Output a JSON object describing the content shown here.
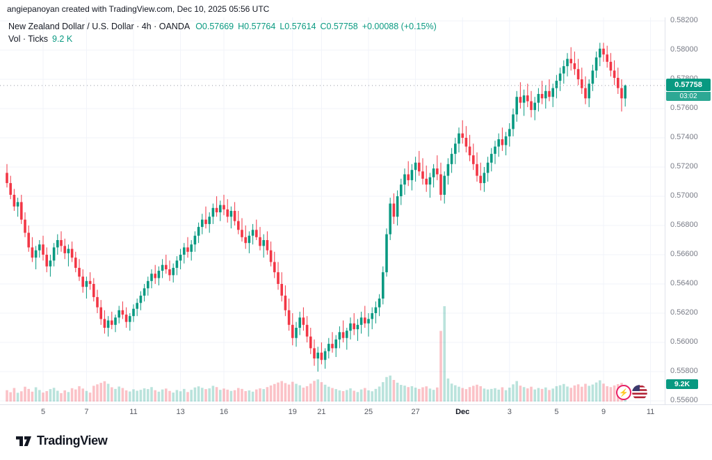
{
  "attribution": "angiepanoyan created with TradingView.com, Dec 10, 2025 05:56 UTC",
  "legend": {
    "symbol_line": "New Zealand Dollar / U.S. Dollar · 4h · OANDA",
    "open": "O0.57669",
    "high": "H0.57764",
    "low": "L0.57614",
    "close": "C0.57758",
    "change": "+0.00088 (+0.15%)",
    "vol_label": "Vol · Ticks",
    "vol_value": "9.2 K"
  },
  "badges": {
    "last_price": "0.57758",
    "countdown": "03:02",
    "volume": "9.2K"
  },
  "icons": {
    "lightning": "⚡"
  },
  "footer": {
    "logo_text": "TradingView"
  },
  "colors": {
    "up": "#089981",
    "down": "#f23645",
    "vol_up": "rgba(8,153,129,0.28)",
    "vol_down": "rgba(242,54,69,0.30)",
    "grid": "#f0f3fa",
    "last_price_line": "#9598a1",
    "axis_text": "#787b86",
    "badge": "#089981"
  },
  "chart_data": {
    "type": "candlestick",
    "title": "New Zealand Dollar / U.S. Dollar",
    "interval": "4h",
    "exchange": "OANDA",
    "legend_position": "top-left",
    "grid": true,
    "last_price": 0.57758,
    "volume_unit": "K",
    "price_axis": {
      "labels": [
        "0.58200",
        "0.58000",
        "0.57800",
        "0.57600",
        "0.57400",
        "0.57200",
        "0.57000",
        "0.56800",
        "0.56600",
        "0.56400",
        "0.56200",
        "0.56000",
        "0.55800",
        "0.55600"
      ]
    },
    "x_ticks": [
      {
        "label": "5",
        "i": 10
      },
      {
        "label": "7",
        "i": 22
      },
      {
        "label": "11",
        "i": 35
      },
      {
        "label": "13",
        "i": 48
      },
      {
        "label": "16",
        "i": 60
      },
      {
        "label": "19",
        "i": 79
      },
      {
        "label": "21",
        "i": 87
      },
      {
        "label": "25",
        "i": 100
      },
      {
        "label": "27",
        "i": 113
      },
      {
        "label": "Dec",
        "i": 126,
        "bold": true
      },
      {
        "label": "3",
        "i": 139
      },
      {
        "label": "5",
        "i": 152
      },
      {
        "label": "9",
        "i": 165
      },
      {
        "label": "11",
        "i": 178
      }
    ],
    "candles": [
      [
        0.5716,
        0.5722,
        0.5706,
        0.5709
      ],
      [
        0.5709,
        0.5714,
        0.5698,
        0.5701
      ],
      [
        0.5701,
        0.5705,
        0.569,
        0.5693
      ],
      [
        0.5693,
        0.5699,
        0.5686,
        0.5696
      ],
      [
        0.5696,
        0.5701,
        0.5681,
        0.5684
      ],
      [
        0.5684,
        0.5689,
        0.5672,
        0.5675
      ],
      [
        0.5675,
        0.568,
        0.5662,
        0.5665
      ],
      [
        0.5665,
        0.5672,
        0.5655,
        0.5658
      ],
      [
        0.5658,
        0.5666,
        0.565,
        0.5663
      ],
      [
        0.5663,
        0.567,
        0.5658,
        0.5667
      ],
      [
        0.5667,
        0.5673,
        0.5656,
        0.566
      ],
      [
        0.566,
        0.5665,
        0.5648,
        0.5652
      ],
      [
        0.5652,
        0.566,
        0.5645,
        0.5656
      ],
      [
        0.5656,
        0.5668,
        0.5652,
        0.5665
      ],
      [
        0.5665,
        0.5674,
        0.566,
        0.567
      ],
      [
        0.567,
        0.5676,
        0.5662,
        0.5666
      ],
      [
        0.5666,
        0.5671,
        0.5657,
        0.5661
      ],
      [
        0.5661,
        0.5667,
        0.5652,
        0.5664
      ],
      [
        0.5664,
        0.5669,
        0.5655,
        0.5658
      ],
      [
        0.5658,
        0.5662,
        0.5648,
        0.5651
      ],
      [
        0.5651,
        0.5657,
        0.5642,
        0.5645
      ],
      [
        0.5645,
        0.565,
        0.5634,
        0.5638
      ],
      [
        0.5638,
        0.5645,
        0.563,
        0.5642
      ],
      [
        0.5642,
        0.5648,
        0.5636,
        0.564
      ],
      [
        0.564,
        0.5644,
        0.5628,
        0.5631
      ],
      [
        0.5631,
        0.5636,
        0.562,
        0.5624
      ],
      [
        0.5624,
        0.5629,
        0.5612,
        0.5616
      ],
      [
        0.5616,
        0.5622,
        0.5606,
        0.561
      ],
      [
        0.561,
        0.5618,
        0.5604,
        0.5615
      ],
      [
        0.5615,
        0.5621,
        0.5609,
        0.5612
      ],
      [
        0.5612,
        0.5619,
        0.5607,
        0.5617
      ],
      [
        0.5617,
        0.5625,
        0.5613,
        0.5622
      ],
      [
        0.5622,
        0.5628,
        0.5616,
        0.5619
      ],
      [
        0.5619,
        0.5624,
        0.561,
        0.5614
      ],
      [
        0.5614,
        0.562,
        0.5608,
        0.5618
      ],
      [
        0.5618,
        0.5626,
        0.5614,
        0.5623
      ],
      [
        0.5623,
        0.563,
        0.5618,
        0.5627
      ],
      [
        0.5627,
        0.5635,
        0.5622,
        0.5632
      ],
      [
        0.5632,
        0.564,
        0.5628,
        0.5637
      ],
      [
        0.5637,
        0.5645,
        0.5632,
        0.5642
      ],
      [
        0.5642,
        0.565,
        0.5637,
        0.5647
      ],
      [
        0.5647,
        0.5653,
        0.564,
        0.5644
      ],
      [
        0.5644,
        0.5652,
        0.5639,
        0.5649
      ],
      [
        0.5649,
        0.5657,
        0.5644,
        0.5653
      ],
      [
        0.5653,
        0.566,
        0.5647,
        0.565
      ],
      [
        0.565,
        0.5656,
        0.5642,
        0.5646
      ],
      [
        0.5646,
        0.5654,
        0.5641,
        0.5651
      ],
      [
        0.5651,
        0.5659,
        0.5646,
        0.5656
      ],
      [
        0.5656,
        0.5664,
        0.565,
        0.566
      ],
      [
        0.566,
        0.5668,
        0.5654,
        0.5665
      ],
      [
        0.5665,
        0.5672,
        0.5658,
        0.5662
      ],
      [
        0.5662,
        0.567,
        0.5656,
        0.5667
      ],
      [
        0.5667,
        0.5676,
        0.5662,
        0.5673
      ],
      [
        0.5673,
        0.5682,
        0.5668,
        0.5679
      ],
      [
        0.5679,
        0.5688,
        0.5674,
        0.5684
      ],
      [
        0.5684,
        0.5693,
        0.5678,
        0.5681
      ],
      [
        0.5681,
        0.5689,
        0.5675,
        0.5686
      ],
      [
        0.5686,
        0.5695,
        0.5681,
        0.5692
      ],
      [
        0.5692,
        0.57,
        0.5686,
        0.5689
      ],
      [
        0.5689,
        0.5697,
        0.5683,
        0.5694
      ],
      [
        0.5694,
        0.5701,
        0.5687,
        0.5691
      ],
      [
        0.5691,
        0.5698,
        0.5682,
        0.5686
      ],
      [
        0.5686,
        0.5693,
        0.5678,
        0.569
      ],
      [
        0.569,
        0.5696,
        0.568,
        0.5683
      ],
      [
        0.5683,
        0.569,
        0.5674,
        0.5677
      ],
      [
        0.5677,
        0.5685,
        0.5669,
        0.5672
      ],
      [
        0.5672,
        0.568,
        0.5664,
        0.5668
      ],
      [
        0.5668,
        0.5676,
        0.5661,
        0.5673
      ],
      [
        0.5673,
        0.5681,
        0.5667,
        0.5677
      ],
      [
        0.5677,
        0.5684,
        0.567,
        0.5672
      ],
      [
        0.5672,
        0.5679,
        0.5663,
        0.5666
      ],
      [
        0.5666,
        0.5674,
        0.5658,
        0.567
      ],
      [
        0.567,
        0.5676,
        0.566,
        0.5663
      ],
      [
        0.5663,
        0.5669,
        0.5652,
        0.5655
      ],
      [
        0.5655,
        0.5662,
        0.5644,
        0.5648
      ],
      [
        0.5648,
        0.5655,
        0.5636,
        0.564
      ],
      [
        0.564,
        0.5648,
        0.5628,
        0.5632
      ],
      [
        0.5632,
        0.5639,
        0.5618,
        0.5622
      ],
      [
        0.5622,
        0.563,
        0.5608,
        0.5612
      ],
      [
        0.5612,
        0.562,
        0.5598,
        0.5603
      ],
      [
        0.5603,
        0.5614,
        0.5597,
        0.561
      ],
      [
        0.561,
        0.5621,
        0.5605,
        0.5617
      ],
      [
        0.5617,
        0.5624,
        0.5608,
        0.5612
      ],
      [
        0.5612,
        0.5618,
        0.56,
        0.5604
      ],
      [
        0.5604,
        0.561,
        0.5592,
        0.5596
      ],
      [
        0.5596,
        0.5602,
        0.5584,
        0.5589
      ],
      [
        0.5589,
        0.5597,
        0.558,
        0.5593
      ],
      [
        0.5593,
        0.56,
        0.5585,
        0.5588
      ],
      [
        0.5588,
        0.5596,
        0.5582,
        0.5594
      ],
      [
        0.5594,
        0.5603,
        0.5589,
        0.5599
      ],
      [
        0.5599,
        0.5607,
        0.5593,
        0.5596
      ],
      [
        0.5596,
        0.5605,
        0.559,
        0.5602
      ],
      [
        0.5602,
        0.5611,
        0.5596,
        0.5607
      ],
      [
        0.5607,
        0.5615,
        0.56,
        0.5603
      ],
      [
        0.5603,
        0.561,
        0.5595,
        0.5608
      ],
      [
        0.5608,
        0.5617,
        0.5602,
        0.5613
      ],
      [
        0.5613,
        0.562,
        0.5605,
        0.5609
      ],
      [
        0.5609,
        0.5616,
        0.5601,
        0.5612
      ],
      [
        0.5612,
        0.5621,
        0.5606,
        0.5617
      ],
      [
        0.5617,
        0.5625,
        0.561,
        0.5613
      ],
      [
        0.5613,
        0.562,
        0.5604,
        0.5616
      ],
      [
        0.5616,
        0.5624,
        0.5609,
        0.562
      ],
      [
        0.562,
        0.5628,
        0.5613,
        0.5624
      ],
      [
        0.5624,
        0.5633,
        0.5618,
        0.563
      ],
      [
        0.563,
        0.5652,
        0.5626,
        0.5648
      ],
      [
        0.5648,
        0.5678,
        0.5645,
        0.5674
      ],
      [
        0.5674,
        0.5699,
        0.567,
        0.5695
      ],
      [
        0.5695,
        0.5702,
        0.5681,
        0.5686
      ],
      [
        0.5686,
        0.5704,
        0.568,
        0.57
      ],
      [
        0.57,
        0.5712,
        0.5694,
        0.5708
      ],
      [
        0.5708,
        0.5719,
        0.5701,
        0.5715
      ],
      [
        0.5715,
        0.5724,
        0.5707,
        0.5711
      ],
      [
        0.5711,
        0.5722,
        0.5704,
        0.5718
      ],
      [
        0.5718,
        0.5727,
        0.571,
        0.5723
      ],
      [
        0.5723,
        0.5731,
        0.5714,
        0.5717
      ],
      [
        0.5717,
        0.5726,
        0.5708,
        0.5712
      ],
      [
        0.5712,
        0.5721,
        0.5703,
        0.5708
      ],
      [
        0.5708,
        0.5716,
        0.5699,
        0.5713
      ],
      [
        0.5713,
        0.5722,
        0.5706,
        0.5719
      ],
      [
        0.5719,
        0.5728,
        0.5711,
        0.5715
      ],
      [
        0.5715,
        0.5723,
        0.5697,
        0.5701
      ],
      [
        0.5701,
        0.5717,
        0.5695,
        0.5714
      ],
      [
        0.5714,
        0.5726,
        0.5708,
        0.5722
      ],
      [
        0.5722,
        0.5733,
        0.5716,
        0.5729
      ],
      [
        0.5729,
        0.574,
        0.5722,
        0.5736
      ],
      [
        0.5736,
        0.5747,
        0.573,
        0.5743
      ],
      [
        0.5743,
        0.5752,
        0.5736,
        0.574
      ],
      [
        0.574,
        0.5748,
        0.573,
        0.5734
      ],
      [
        0.5734,
        0.5742,
        0.5724,
        0.5728
      ],
      [
        0.5728,
        0.5736,
        0.5718,
        0.5722
      ],
      [
        0.5722,
        0.573,
        0.571,
        0.5714
      ],
      [
        0.5714,
        0.5723,
        0.5704,
        0.5709
      ],
      [
        0.5709,
        0.572,
        0.5703,
        0.5716
      ],
      [
        0.5716,
        0.5727,
        0.571,
        0.5723
      ],
      [
        0.5723,
        0.5733,
        0.5717,
        0.5729
      ],
      [
        0.5729,
        0.5738,
        0.5722,
        0.5734
      ],
      [
        0.5734,
        0.5743,
        0.5727,
        0.5739
      ],
      [
        0.5739,
        0.5747,
        0.5731,
        0.5735
      ],
      [
        0.5735,
        0.5744,
        0.5728,
        0.5741
      ],
      [
        0.5741,
        0.575,
        0.5734,
        0.5746
      ],
      [
        0.5746,
        0.576,
        0.5741,
        0.5756
      ],
      [
        0.5756,
        0.5772,
        0.5751,
        0.5768
      ],
      [
        0.5768,
        0.5778,
        0.576,
        0.5764
      ],
      [
        0.5764,
        0.5773,
        0.5755,
        0.5769
      ],
      [
        0.5769,
        0.5777,
        0.5761,
        0.5765
      ],
      [
        0.5765,
        0.5772,
        0.5754,
        0.5759
      ],
      [
        0.5759,
        0.5768,
        0.5752,
        0.5764
      ],
      [
        0.5764,
        0.5774,
        0.5758,
        0.577
      ],
      [
        0.577,
        0.5779,
        0.5763,
        0.5767
      ],
      [
        0.5767,
        0.5776,
        0.576,
        0.5772
      ],
      [
        0.5772,
        0.578,
        0.5765,
        0.5768
      ],
      [
        0.5768,
        0.5777,
        0.5761,
        0.5774
      ],
      [
        0.5774,
        0.5783,
        0.5767,
        0.5779
      ],
      [
        0.5779,
        0.5788,
        0.5772,
        0.5784
      ],
      [
        0.5784,
        0.5793,
        0.5777,
        0.5789
      ],
      [
        0.5789,
        0.5798,
        0.5782,
        0.5794
      ],
      [
        0.5794,
        0.5802,
        0.5786,
        0.5791
      ],
      [
        0.5791,
        0.5799,
        0.5783,
        0.5787
      ],
      [
        0.5787,
        0.5794,
        0.5776,
        0.578
      ],
      [
        0.578,
        0.5788,
        0.577,
        0.5774
      ],
      [
        0.5774,
        0.5782,
        0.5763,
        0.5767
      ],
      [
        0.5767,
        0.578,
        0.5761,
        0.5777
      ],
      [
        0.5777,
        0.579,
        0.5772,
        0.5786
      ],
      [
        0.5786,
        0.5799,
        0.5781,
        0.5795
      ],
      [
        0.5795,
        0.5805,
        0.5789,
        0.5801
      ],
      [
        0.5801,
        0.5805,
        0.5792,
        0.5797
      ],
      [
        0.5797,
        0.5803,
        0.5788,
        0.5792
      ],
      [
        0.5792,
        0.5798,
        0.5782,
        0.5786
      ],
      [
        0.5786,
        0.5793,
        0.5776,
        0.5781
      ],
      [
        0.5781,
        0.5788,
        0.577,
        0.5774
      ],
      [
        0.5774,
        0.578,
        0.5758,
        0.5767
      ],
      [
        0.57669,
        0.57764,
        0.57614,
        0.57758
      ]
    ],
    "volumes": [
      6.2,
      5.1,
      7.4,
      4.8,
      5.6,
      8.1,
      6.9,
      5.4,
      7.8,
      6.3,
      4.9,
      5.7,
      6.8,
      7.5,
      5.9,
      4.6,
      6.1,
      5.2,
      7.3,
      6.6,
      8.4,
      7.1,
      5.8,
      4.9,
      8.6,
      9.4,
      10.2,
      11.1,
      9.7,
      7.8,
      6.9,
      8.2,
      7.4,
      6.1,
      5.5,
      6.7,
      5.9,
      6.4,
      7.2,
      6.8,
      7.9,
      6.2,
      5.4,
      6.6,
      7.1,
      5.8,
      4.9,
      6.3,
      5.6,
      6.9,
      5.2,
      6.4,
      7.7,
      8.3,
      7.5,
      6.8,
      7.2,
      8.6,
      7.9,
      6.4,
      7.1,
      6.5,
      5.8,
      6.2,
      7.4,
      6.9,
      5.7,
      6.1,
      5.4,
      6.6,
      7.2,
      6.8,
      7.9,
      8.8,
      9.6,
      10.4,
      11.2,
      10.1,
      9.3,
      10.8,
      9.7,
      8.9,
      7.6,
      8.4,
      9.8,
      11.3,
      12.1,
      10.6,
      9.2,
      8.1,
      7.4,
      6.8,
      6.1,
      5.7,
      6.3,
      7.2,
      5.9,
      5.2,
      6.6,
      7.4,
      6.1,
      5.6,
      6.9,
      8.2,
      10.6,
      13.4,
      14.2,
      11.8,
      10.3,
      9.1,
      8.7,
      7.9,
      8.4,
      7.6,
      6.9,
      7.8,
      8.3,
      7.1,
      6.4,
      7.7,
      38.6,
      52.1,
      12.6,
      9.8,
      8.9,
      8.1,
      7.4,
      6.8,
      7.9,
      8.6,
      9.2,
      8.4,
      7.1,
      6.6,
      6.9,
      7.3,
      6.5,
      7.8,
      6.2,
      7.6,
      9.4,
      11.2,
      8.7,
      7.9,
      7.2,
      8.1,
      6.6,
      7.4,
      6.9,
      7.7,
      6.3,
      7.1,
      8.4,
      8.9,
      9.6,
      8.2,
      7.5,
      8.8,
      9.4,
      8.1,
      9.7,
      8.6,
      9.3,
      10.4,
      11.6,
      9.8,
      8.4,
      7.9,
      8.8,
      9.5,
      10.2,
      9.2
    ]
  }
}
